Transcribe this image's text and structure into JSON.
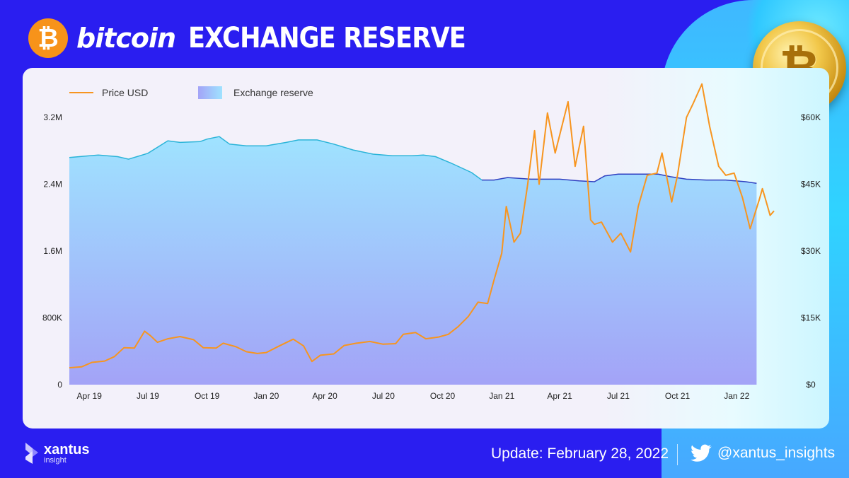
{
  "header": {
    "brand": "bitcoin",
    "title": "EXCHANGE RESERVE",
    "logo_symbol": "₿"
  },
  "footer": {
    "company": "xantus",
    "company_sub": "insight",
    "update": "Update: February 28, 2022",
    "twitter_handle": "@xantus_insights"
  },
  "colors": {
    "price": "#f7951f",
    "reserve_line": "#2f3fc0",
    "reserve_line_early": "#2bb4d8",
    "reserve_fill_top": "#9fe3ff",
    "reserve_fill_bottom": "#a3a3f7"
  },
  "chart_data": {
    "type": "line",
    "legend": [
      "Price USD",
      "Exchange reserve"
    ],
    "legend_position": "top-left",
    "x_ticks": [
      "Apr 19",
      "Jul 19",
      "Oct 19",
      "Jan 20",
      "Apr 20",
      "Jul 20",
      "Oct 20",
      "Jan 21",
      "Apr 21",
      "Jul 21",
      "Oct 21",
      "Jan 22"
    ],
    "x_range": [
      "2019-03-01",
      "2022-02-28"
    ],
    "y_left": {
      "label": "",
      "ticks": [
        "0",
        "800K",
        "1.6M",
        "2.4M",
        "3.2M"
      ],
      "ylim": [
        0,
        3200000
      ]
    },
    "y_right": {
      "label": "",
      "ticks": [
        "$0",
        "$15K",
        "$30K",
        "$45K",
        "$60K"
      ],
      "ylim": [
        0,
        60000
      ]
    },
    "grid": false,
    "series": [
      {
        "name": "Exchange reserve",
        "axis": "left",
        "type": "area",
        "points": [
          [
            "2019-03-01",
            2720000
          ],
          [
            "2019-04-15",
            2750000
          ],
          [
            "2019-05-15",
            2730000
          ],
          [
            "2019-06-01",
            2700000
          ],
          [
            "2019-07-01",
            2770000
          ],
          [
            "2019-08-01",
            2920000
          ],
          [
            "2019-08-20",
            2900000
          ],
          [
            "2019-09-20",
            2910000
          ],
          [
            "2019-10-01",
            2940000
          ],
          [
            "2019-10-20",
            2970000
          ],
          [
            "2019-11-05",
            2880000
          ],
          [
            "2019-12-01",
            2860000
          ],
          [
            "2020-01-01",
            2860000
          ],
          [
            "2020-02-01",
            2900000
          ],
          [
            "2020-02-20",
            2930000
          ],
          [
            "2020-03-20",
            2930000
          ],
          [
            "2020-04-15",
            2880000
          ],
          [
            "2020-05-15",
            2810000
          ],
          [
            "2020-06-15",
            2760000
          ],
          [
            "2020-07-15",
            2740000
          ],
          [
            "2020-08-15",
            2740000
          ],
          [
            "2020-09-01",
            2750000
          ],
          [
            "2020-09-20",
            2730000
          ],
          [
            "2020-10-15",
            2650000
          ],
          [
            "2020-11-15",
            2540000
          ],
          [
            "2020-12-01",
            2450000
          ],
          [
            "2020-12-20",
            2450000
          ],
          [
            "2021-01-10",
            2480000
          ],
          [
            "2021-02-15",
            2460000
          ],
          [
            "2021-04-01",
            2460000
          ],
          [
            "2021-05-01",
            2440000
          ],
          [
            "2021-05-25",
            2430000
          ],
          [
            "2021-06-10",
            2500000
          ],
          [
            "2021-07-01",
            2520000
          ],
          [
            "2021-08-01",
            2520000
          ],
          [
            "2021-09-01",
            2520000
          ],
          [
            "2021-09-20",
            2490000
          ],
          [
            "2021-10-15",
            2460000
          ],
          [
            "2021-11-15",
            2450000
          ],
          [
            "2021-12-15",
            2450000
          ],
          [
            "2022-01-15",
            2430000
          ],
          [
            "2022-02-01",
            2410000
          ]
        ]
      },
      {
        "name": "Price USD",
        "axis": "right",
        "type": "line",
        "points": [
          [
            "2019-03-01",
            3800
          ],
          [
            "2019-03-20",
            4000
          ],
          [
            "2019-04-05",
            5000
          ],
          [
            "2019-04-25",
            5300
          ],
          [
            "2019-05-10",
            6300
          ],
          [
            "2019-05-25",
            8300
          ],
          [
            "2019-06-10",
            8200
          ],
          [
            "2019-06-26",
            12000
          ],
          [
            "2019-07-05",
            11000
          ],
          [
            "2019-07-16",
            9500
          ],
          [
            "2019-08-01",
            10300
          ],
          [
            "2019-08-20",
            10800
          ],
          [
            "2019-09-10",
            10100
          ],
          [
            "2019-09-25",
            8300
          ],
          [
            "2019-10-15",
            8200
          ],
          [
            "2019-10-26",
            9300
          ],
          [
            "2019-11-15",
            8500
          ],
          [
            "2019-12-01",
            7400
          ],
          [
            "2019-12-18",
            7000
          ],
          [
            "2020-01-01",
            7200
          ],
          [
            "2020-01-20",
            8600
          ],
          [
            "2020-02-12",
            10200
          ],
          [
            "2020-02-28",
            8700
          ],
          [
            "2020-03-12",
            5200
          ],
          [
            "2020-03-25",
            6600
          ],
          [
            "2020-04-15",
            6900
          ],
          [
            "2020-05-01",
            8800
          ],
          [
            "2020-05-20",
            9300
          ],
          [
            "2020-06-10",
            9700
          ],
          [
            "2020-06-30",
            9100
          ],
          [
            "2020-07-20",
            9200
          ],
          [
            "2020-08-01",
            11300
          ],
          [
            "2020-08-20",
            11700
          ],
          [
            "2020-09-05",
            10300
          ],
          [
            "2020-09-25",
            10700
          ],
          [
            "2020-10-10",
            11300
          ],
          [
            "2020-10-25",
            13000
          ],
          [
            "2020-11-10",
            15300
          ],
          [
            "2020-11-25",
            18500
          ],
          [
            "2020-12-10",
            18200
          ],
          [
            "2020-12-20",
            23500
          ],
          [
            "2021-01-01",
            29500
          ],
          [
            "2021-01-08",
            40000
          ],
          [
            "2021-01-20",
            32000
          ],
          [
            "2021-01-30",
            34000
          ],
          [
            "2021-02-10",
            44700
          ],
          [
            "2021-02-21",
            57000
          ],
          [
            "2021-02-28",
            45000
          ],
          [
            "2021-03-13",
            61000
          ],
          [
            "2021-03-25",
            52000
          ],
          [
            "2021-04-14",
            63500
          ],
          [
            "2021-04-25",
            49000
          ],
          [
            "2021-05-08",
            58000
          ],
          [
            "2021-05-19",
            37000
          ],
          [
            "2021-05-25",
            36000
          ],
          [
            "2021-06-05",
            36500
          ],
          [
            "2021-06-22",
            32000
          ],
          [
            "2021-07-05",
            34000
          ],
          [
            "2021-07-20",
            29800
          ],
          [
            "2021-08-01",
            40000
          ],
          [
            "2021-08-15",
            47000
          ],
          [
            "2021-08-30",
            47500
          ],
          [
            "2021-09-07",
            52000
          ],
          [
            "2021-09-22",
            41000
          ],
          [
            "2021-10-01",
            47000
          ],
          [
            "2021-10-15",
            60000
          ],
          [
            "2021-10-25",
            63000
          ],
          [
            "2021-11-08",
            67500
          ],
          [
            "2021-11-20",
            58000
          ],
          [
            "2021-12-04",
            49000
          ],
          [
            "2021-12-15",
            47000
          ],
          [
            "2021-12-28",
            47500
          ],
          [
            "2022-01-10",
            42000
          ],
          [
            "2022-01-22",
            35000
          ],
          [
            "2022-02-05",
            41500
          ],
          [
            "2022-02-10",
            44000
          ],
          [
            "2022-02-14",
            42000
          ],
          [
            "2022-02-22",
            38000
          ],
          [
            "2022-02-28",
            39000
          ]
        ]
      }
    ]
  }
}
